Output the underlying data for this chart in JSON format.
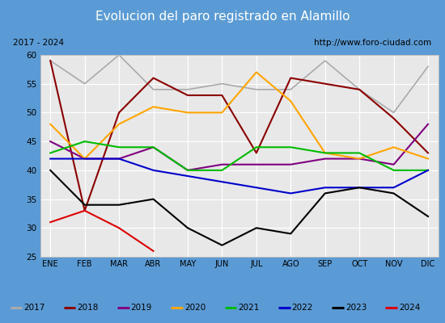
{
  "title": "Evolucion del paro registrado en Alamillo",
  "subtitle_left": "2017 - 2024",
  "subtitle_right": "http://www.foro-ciudad.com",
  "months": [
    "ENE",
    "FEB",
    "MAR",
    "ABR",
    "MAY",
    "JUN",
    "JUL",
    "AGO",
    "SEP",
    "OCT",
    "NOV",
    "DIC"
  ],
  "ylim": [
    25,
    60
  ],
  "yticks": [
    25,
    30,
    35,
    40,
    45,
    50,
    55,
    60
  ],
  "series": {
    "2017": {
      "values": [
        59,
        55,
        60,
        54,
        54,
        55,
        54,
        54,
        59,
        54,
        50,
        58
      ],
      "color": "#aaaaaa",
      "lw": 1.2
    },
    "2018": {
      "values": [
        59,
        33,
        50,
        56,
        53,
        53,
        43,
        56,
        55,
        54,
        49,
        43
      ],
      "color": "#8b0000",
      "lw": 1.5
    },
    "2019": {
      "values": [
        45,
        42,
        42,
        44,
        40,
        41,
        41,
        41,
        42,
        42,
        41,
        48
      ],
      "color": "#800080",
      "lw": 1.5
    },
    "2020": {
      "values": [
        48,
        42,
        48,
        51,
        50,
        50,
        57,
        52,
        43,
        42,
        44,
        42
      ],
      "color": "#ffa500",
      "lw": 1.5
    },
    "2021": {
      "values": [
        43,
        45,
        44,
        44,
        40,
        40,
        44,
        44,
        43,
        43,
        40,
        40
      ],
      "color": "#00bb00",
      "lw": 1.5
    },
    "2022": {
      "values": [
        42,
        42,
        42,
        40,
        39,
        38,
        37,
        36,
        37,
        37,
        37,
        40
      ],
      "color": "#0000cc",
      "lw": 1.5
    },
    "2023": {
      "values": [
        40,
        34,
        34,
        35,
        30,
        27,
        30,
        29,
        36,
        37,
        36,
        32
      ],
      "color": "#000000",
      "lw": 1.5
    },
    "2024": {
      "values": [
        31,
        33,
        30,
        26,
        null,
        null,
        null,
        null,
        null,
        null,
        null,
        null
      ],
      "color": "#dd0000",
      "lw": 1.5
    }
  },
  "title_bg": "#5b9bd5",
  "title_color": "#ffffff",
  "title_fontsize": 11,
  "plot_bg": "#e8e8e8",
  "grid_color": "#ffffff",
  "frame_color": "#5b9bd5",
  "legend_years": [
    "2017",
    "2018",
    "2019",
    "2020",
    "2021",
    "2022",
    "2023",
    "2024"
  ],
  "legend_colors": [
    "#aaaaaa",
    "#8b0000",
    "#800080",
    "#ffa500",
    "#00bb00",
    "#0000cc",
    "#000000",
    "#dd0000"
  ]
}
